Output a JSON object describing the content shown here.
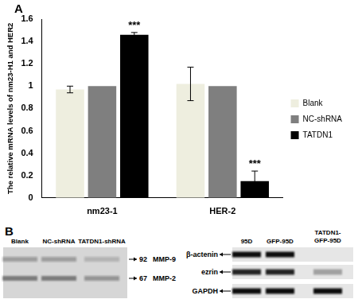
{
  "chart_data": {
    "type": "bar",
    "panel_label": "A",
    "y_label": "The relative mRNA levels of nm23-H1 and HER2",
    "categories": [
      "nm23-1",
      "HER-2"
    ],
    "series": [
      {
        "name": "Blank",
        "color": "#eeeedf",
        "values": [
          0.97,
          1.02
        ],
        "errors": [
          0.03,
          0.15
        ]
      },
      {
        "name": "NC-shRNA",
        "color": "#7f7f7f",
        "values": [
          1.0,
          1.0
        ],
        "errors": [
          0,
          0
        ]
      },
      {
        "name": "TATDN1",
        "color": "#000000",
        "values": [
          1.46,
          0.15
        ],
        "errors": [
          0.02,
          0.09
        ]
      }
    ],
    "annotations": [
      {
        "category": "nm23-1",
        "series": "TATDN1",
        "text": "***"
      },
      {
        "category": "HER-2",
        "series": "TATDN1",
        "text": "***"
      }
    ],
    "ylim": [
      0,
      1.6
    ],
    "yticks": [
      0,
      0.2,
      0.4,
      0.6,
      0.8,
      1,
      1.2,
      1.4,
      1.6
    ],
    "grid": false,
    "legend": "right"
  },
  "blots": [
    {
      "panel_label": "B",
      "lanes": [
        "Blank",
        "NC-shRNA",
        "TATDN1-shRNA"
      ],
      "bands": [
        {
          "size": 92,
          "name": "MMP-9",
          "intensity": [
            0.3,
            0.3,
            0.2
          ]
        },
        {
          "size": 67,
          "name": "MMP-2",
          "intensity": [
            0.5,
            0.5,
            0.35
          ]
        }
      ]
    },
    {
      "lanes": [
        "95D",
        "GFP-95D",
        "TATDN1-GFP-95D"
      ],
      "bands": [
        {
          "name": "β-actenin",
          "intensity": [
            1,
            1,
            0
          ]
        },
        {
          "name": "ezrin",
          "intensity": [
            0.9,
            0.9,
            0.3
          ]
        },
        {
          "name": "GAPDH",
          "intensity": [
            1,
            1,
            1
          ]
        }
      ]
    }
  ]
}
